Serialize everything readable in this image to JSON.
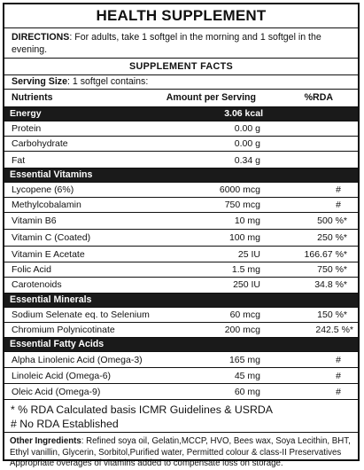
{
  "title": "HEALTH SUPPLEMENT",
  "directions": {
    "label": "DIRECTIONS",
    "text": ": For adults, take 1 softgel in the morning and 1 softgel in the evening."
  },
  "facts_title": "SUPPLEMENT FACTS",
  "serving": {
    "label": "Serving Size",
    "text": ": 1 softgel contains:"
  },
  "headers": {
    "nutrients": "Nutrients",
    "amount": "Amount per Serving",
    "rda": "%RDA"
  },
  "energy": {
    "name": "Energy",
    "amount": "3.06 kcal"
  },
  "macros": [
    {
      "name": "Protein",
      "amount": "0.00 g"
    },
    {
      "name": "Carbohydrate",
      "amount": "0.00 g"
    },
    {
      "name": "Fat",
      "amount": "0.34 g"
    }
  ],
  "vitamins_label": "Essential Vitamins",
  "vitamins": [
    {
      "name": "Lycopene (6%)",
      "amount": "6000 mcg",
      "rda": "#"
    },
    {
      "name": "Methylcobalamin",
      "amount": "750 mcg",
      "rda": "#"
    },
    {
      "name": "Vitamin B6",
      "amount": "10 mg",
      "rda": "500 %*"
    },
    {
      "name": "Vitamin C (Coated)",
      "amount": "100 mg",
      "rda": "250 %*"
    },
    {
      "name": "Vitamin E Acetate",
      "amount": "25 IU",
      "rda": "166.67 %*"
    },
    {
      "name": "Folic Acid",
      "amount": "1.5 mg",
      "rda": "750 %*"
    },
    {
      "name": "Carotenoids",
      "amount": "250 IU",
      "rda": "34.8 %*"
    }
  ],
  "minerals_label": "Essential Minerals",
  "minerals": [
    {
      "name": "Sodium Selenate eq. to Selenium",
      "amount": "60 mcg",
      "rda": "150 %*"
    },
    {
      "name": "Chromium Polynicotinate",
      "amount": "200 mcg",
      "rda": "242.5 %*"
    }
  ],
  "fatty_label": "Essential Fatty Acids",
  "fatty_acids": [
    {
      "name": "Alpha Linolenic Acid (Omega-3)",
      "amount": "165 mg",
      "rda": "#"
    },
    {
      "name": "Linoleic Acid (Omega-6)",
      "amount": "45 mg",
      "rda": "#"
    },
    {
      "name": "Oleic Acid (Omega-9)",
      "amount": "60 mg",
      "rda": "#"
    }
  ],
  "notes": {
    "rda_note": "* % RDA Calculated  basis ICMR  Guidelines & USRDA",
    "hash_note": "# No RDA Established"
  },
  "ingredients": {
    "label": "Other Ingredients",
    "text": ": Refined soya oil, Gelatin,MCCP, HVO, Bees wax, Soya Lecithin, BHT, Ethyl vanillin, Glycerin, Sorbitol,Purified water, Permitted colour & class-II Preservatives",
    "footer": "Appropriate overages of vitamins added to compensate loss on storage."
  }
}
